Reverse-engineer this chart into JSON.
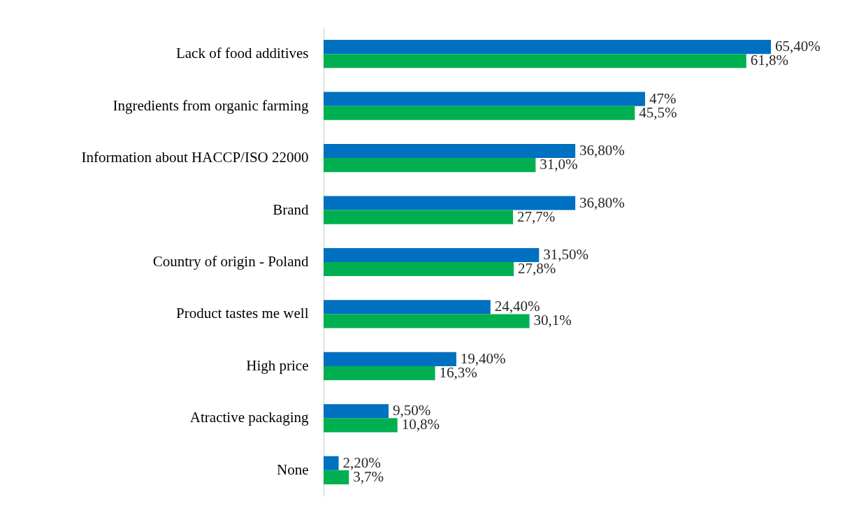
{
  "chart_data": {
    "type": "bar",
    "orientation": "horizontal",
    "categories": [
      "Lack of food additives",
      "Ingredients from organic farming",
      "Information about HACCP/ISO 22000",
      "Brand",
      "Country of origin - Poland",
      "Product tastes me well",
      "High price",
      "Atractive packaging",
      "None"
    ],
    "series": [
      {
        "color": "#0070c0",
        "values": [
          65.4,
          47,
          36.8,
          36.8,
          31.5,
          24.4,
          19.4,
          9.5,
          2.2
        ],
        "value_labels": [
          "65,40%",
          "47%",
          "36,80%",
          "36,80%",
          "31,50%",
          "24,40%",
          "19,40%",
          "9,50%",
          "2,20%"
        ]
      },
      {
        "color": "#00b050",
        "values": [
          61.8,
          45.5,
          31.0,
          27.7,
          27.8,
          30.1,
          16.3,
          10.8,
          3.7
        ],
        "value_labels": [
          "61,8%",
          "45,5%",
          "31,0%",
          "27,7%",
          "27,8%",
          "30,1%",
          "16,3%",
          "10,8%",
          "3,7%"
        ]
      }
    ]
  }
}
